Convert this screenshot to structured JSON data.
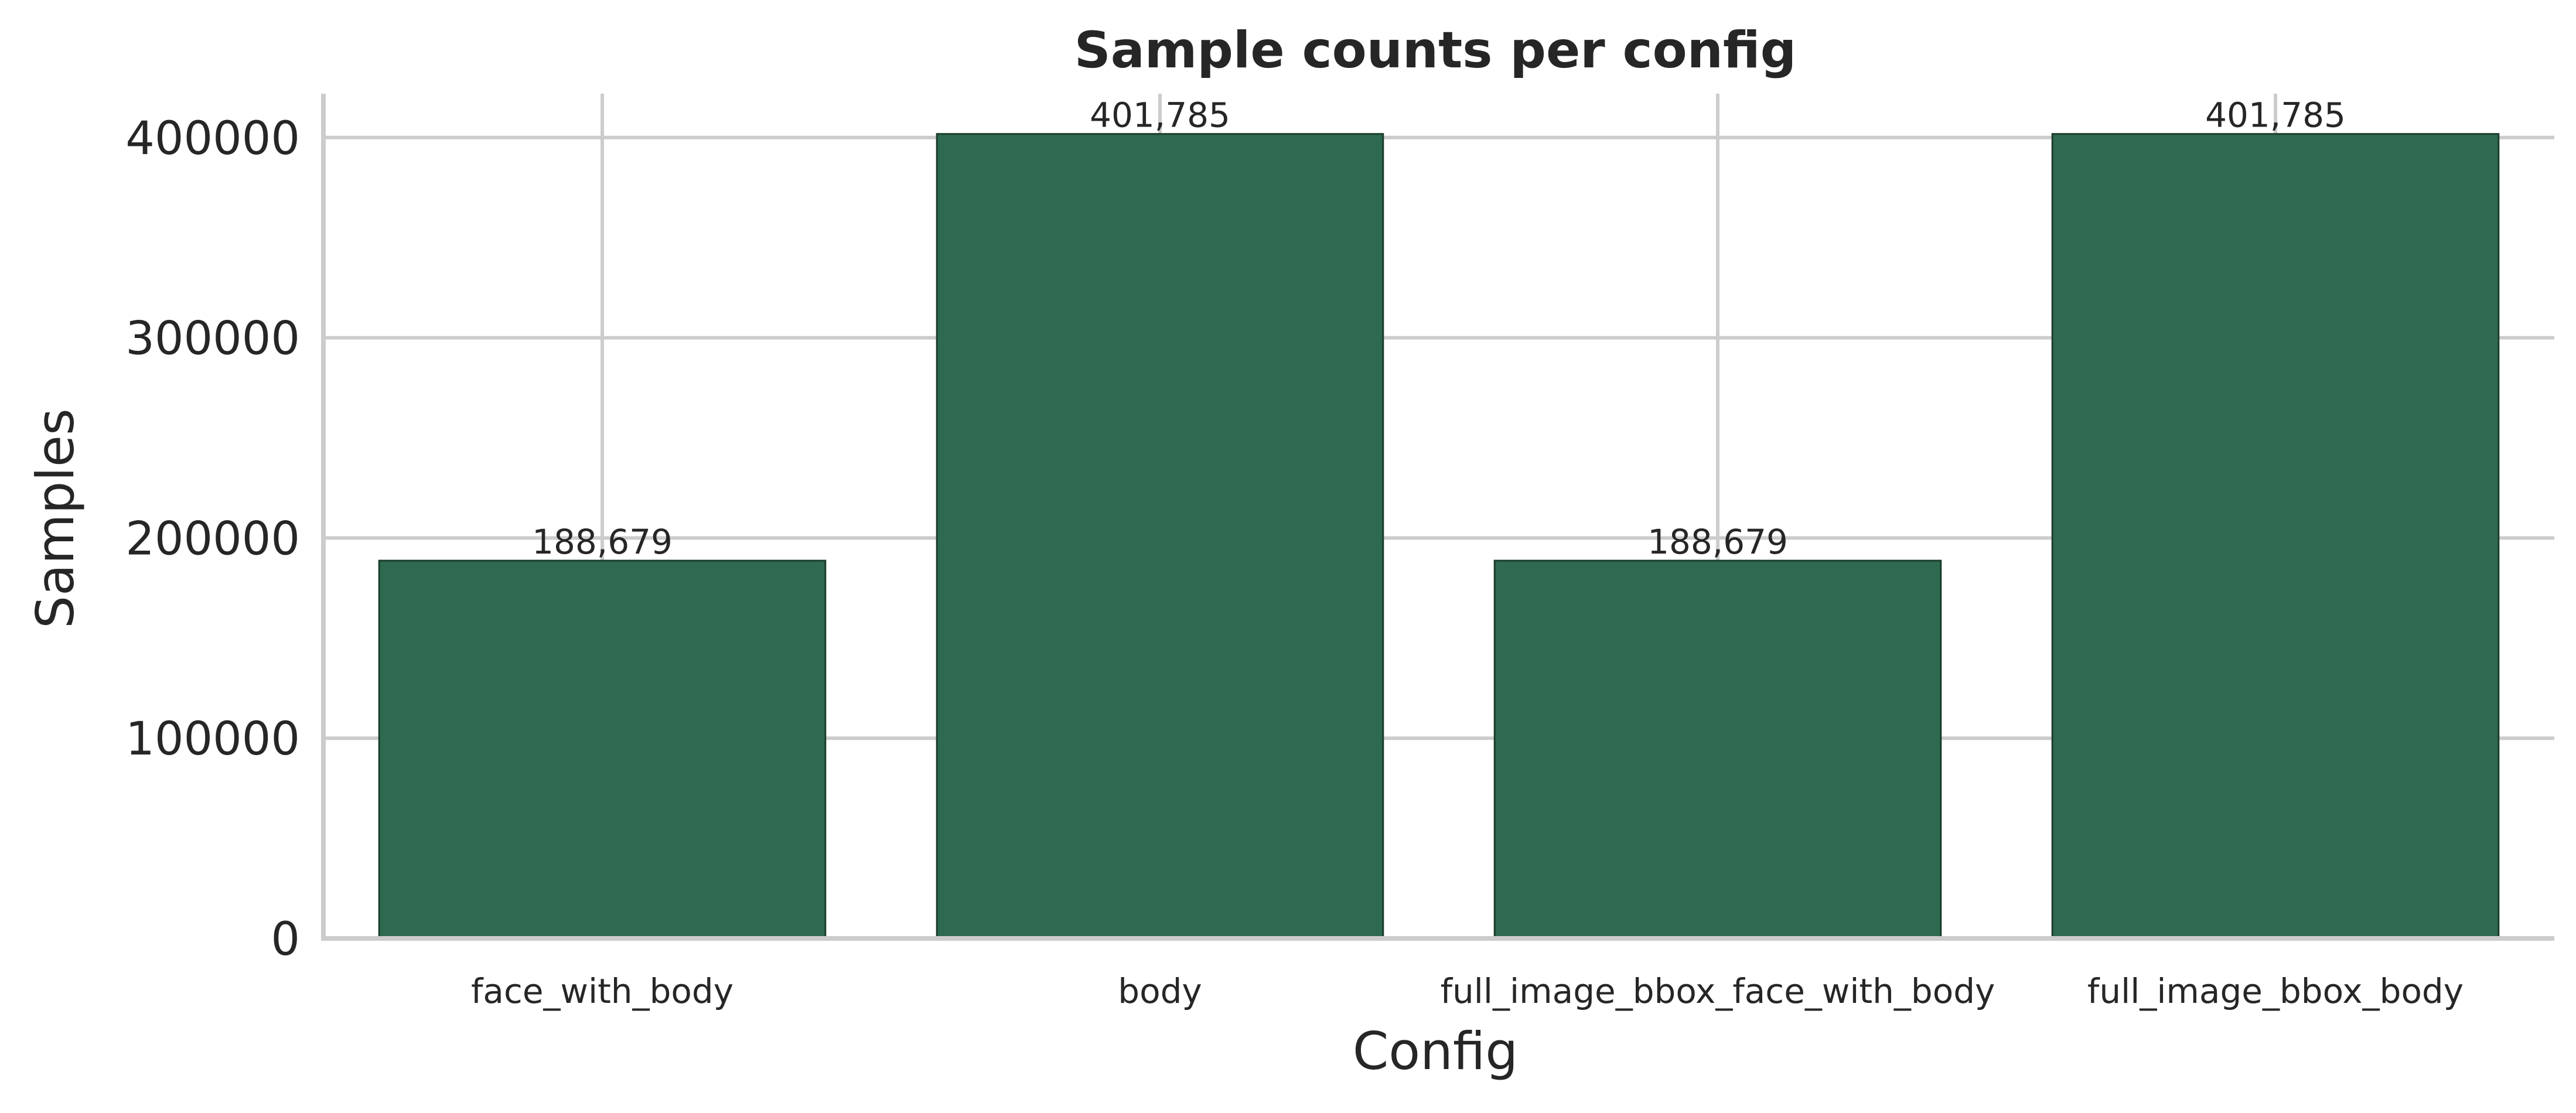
{
  "chart_data": {
    "type": "bar",
    "title": "Sample counts per config",
    "xlabel": "Config",
    "ylabel": "Samples",
    "categories": [
      "face_with_body",
      "body",
      "full_image_bbox_face_with_body",
      "full_image_bbox_body"
    ],
    "values": [
      188679,
      401785,
      188679,
      401785
    ],
    "data_labels": [
      "188,679",
      "401,785",
      "188,679",
      "401,785"
    ],
    "yticks": [
      0,
      100000,
      200000,
      300000,
      400000
    ],
    "ytick_labels": [
      "0",
      "100000",
      "200000",
      "300000",
      "400000"
    ],
    "ylim": [
      0,
      421874
    ],
    "grid": true,
    "bar_color": "#2e6a50",
    "bar_edge_color": "#1c3d2c",
    "grid_color": "#cccccc"
  }
}
